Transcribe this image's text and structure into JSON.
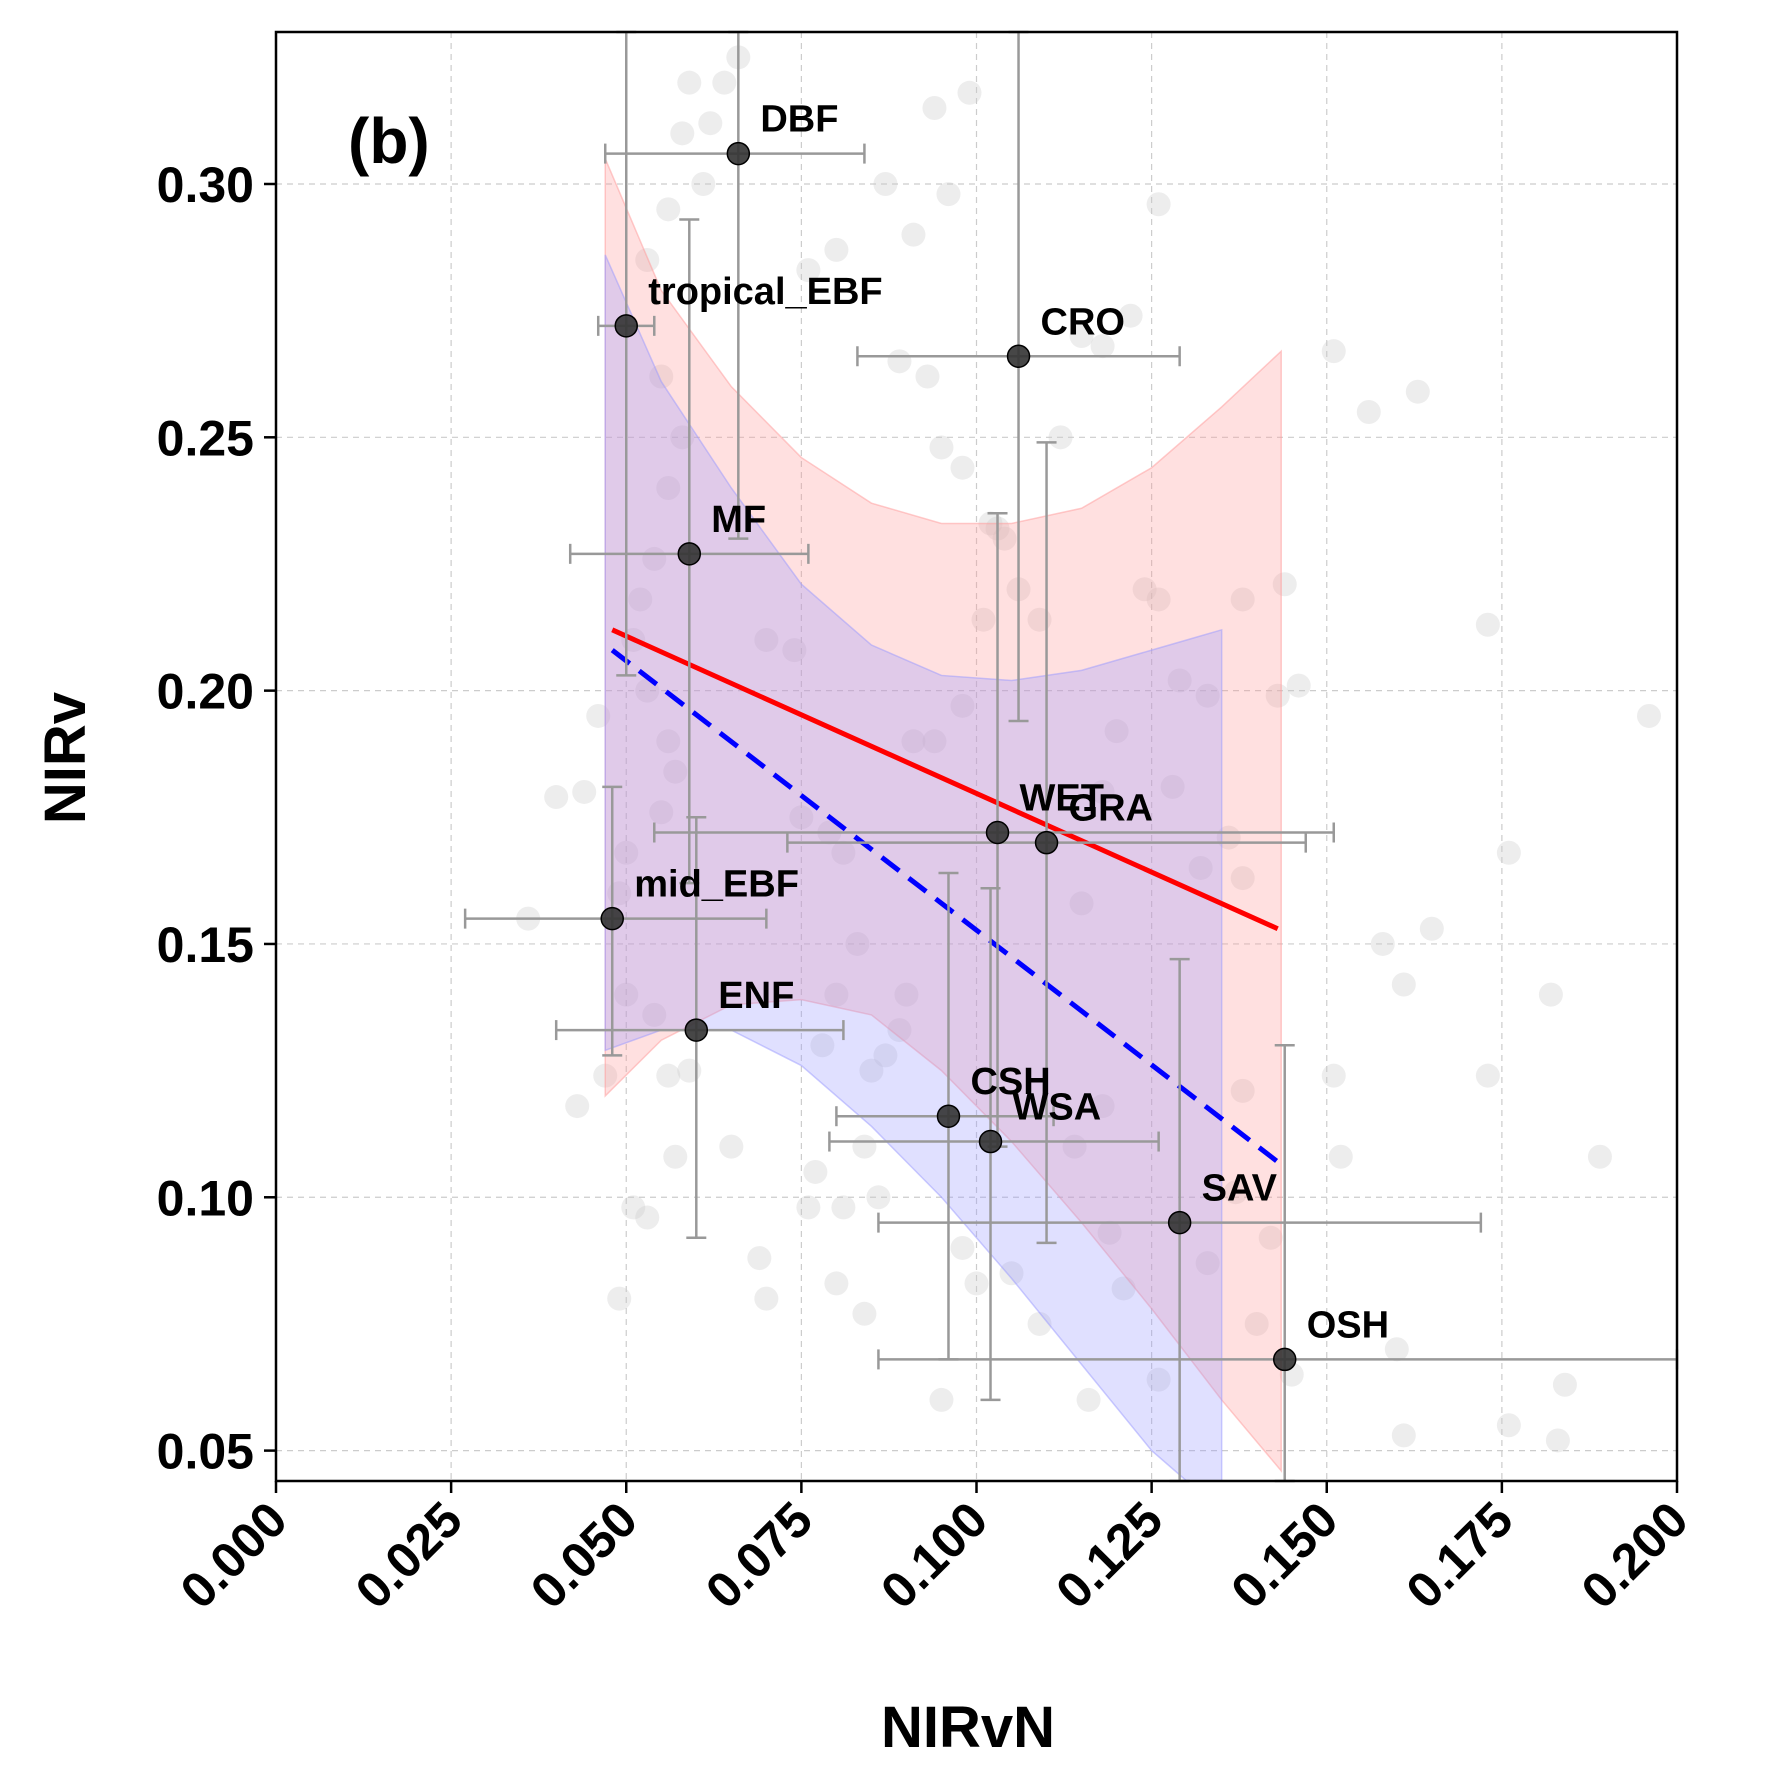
{
  "chart_data": {
    "type": "scatter",
    "panel_label": "(b)",
    "xlabel": "NIRvN",
    "ylabel": "NIRv",
    "xlim": [
      0.0,
      0.2
    ],
    "ylim": [
      0.044,
      0.33
    ],
    "xticks": [
      "0.000",
      "0.025",
      "0.050",
      "0.075",
      "0.100",
      "0.125",
      "0.150",
      "0.175",
      "0.200"
    ],
    "yticks": [
      "0.05",
      "0.10",
      "0.15",
      "0.20",
      "0.25",
      "0.30"
    ],
    "grid": true,
    "colors": {
      "points": "#333333",
      "errorbars": "#999999",
      "background_points": "#cccccc",
      "fit_red": "#ff0000",
      "fit_blue": "#0000ff",
      "band_red": "#ff9999",
      "band_blue": "#9999ff",
      "grid": "#cccccc"
    },
    "points": [
      {
        "label": "DBF",
        "x": 0.066,
        "y": 0.306,
        "xerr": [
          0.047,
          0.084
        ],
        "yerr": [
          0.23,
          0.33
        ]
      },
      {
        "label": "tropical_EBF",
        "x": 0.05,
        "y": 0.272,
        "xerr": [
          0.046,
          0.054
        ],
        "yerr": [
          0.203,
          0.33
        ]
      },
      {
        "label": "CRO",
        "x": 0.106,
        "y": 0.266,
        "xerr": [
          0.083,
          0.129
        ],
        "yerr": [
          0.194,
          0.33
        ]
      },
      {
        "label": "MF",
        "x": 0.059,
        "y": 0.227,
        "xerr": [
          0.042,
          0.076
        ],
        "yerr": [
          0.162,
          0.293
        ]
      },
      {
        "label": "WET",
        "x": 0.103,
        "y": 0.172,
        "xerr": [
          0.054,
          0.151
        ],
        "yerr": [
          0.11,
          0.235
        ]
      },
      {
        "label": "GRA",
        "x": 0.11,
        "y": 0.17,
        "xerr": [
          0.073,
          0.147
        ],
        "yerr": [
          0.091,
          0.249
        ]
      },
      {
        "label": "mid_EBF",
        "x": 0.048,
        "y": 0.155,
        "xerr": [
          0.027,
          0.07
        ],
        "yerr": [
          0.128,
          0.181
        ]
      },
      {
        "label": "ENF",
        "x": 0.06,
        "y": 0.133,
        "xerr": [
          0.04,
          0.081
        ],
        "yerr": [
          0.092,
          0.175
        ]
      },
      {
        "label": "CSH",
        "x": 0.096,
        "y": 0.116,
        "xerr": [
          0.08,
          0.111
        ],
        "yerr": [
          0.068,
          0.164
        ]
      },
      {
        "label": "WSA",
        "x": 0.102,
        "y": 0.111,
        "xerr": [
          0.079,
          0.126
        ],
        "yerr": [
          0.06,
          0.161
        ]
      },
      {
        "label": "SAV",
        "x": 0.129,
        "y": 0.095,
        "xerr": [
          0.086,
          0.172
        ],
        "yerr": [
          0.044,
          0.147
        ]
      },
      {
        "label": "OSH",
        "x": 0.144,
        "y": 0.068,
        "xerr": [
          0.086,
          0.2
        ],
        "yerr": [
          0.044,
          0.13
        ]
      }
    ],
    "fit_lines": [
      {
        "style": "solid",
        "color": "#ff0000",
        "x": [
          0.048,
          0.143
        ],
        "y": [
          0.212,
          0.153
        ]
      },
      {
        "style": "dashed",
        "color": "#0000ff",
        "x": [
          0.048,
          0.143
        ],
        "y": [
          0.208,
          0.107
        ]
      }
    ],
    "confidence_bands": [
      {
        "color": "#ff9999",
        "x": [
          0.047,
          0.055,
          0.065,
          0.075,
          0.085,
          0.095,
          0.105,
          0.115,
          0.125,
          0.135,
          0.1435
        ],
        "upper": [
          0.305,
          0.279,
          0.26,
          0.246,
          0.237,
          0.233,
          0.233,
          0.236,
          0.244,
          0.256,
          0.267
        ],
        "lower": [
          0.12,
          0.131,
          0.138,
          0.139,
          0.136,
          0.125,
          0.111,
          0.095,
          0.078,
          0.06,
          0.046
        ]
      },
      {
        "color": "#9999ff",
        "x": [
          0.047,
          0.055,
          0.065,
          0.075,
          0.085,
          0.095,
          0.105,
          0.115,
          0.125,
          0.13,
          0.135
        ],
        "upper": [
          0.286,
          0.261,
          0.24,
          0.221,
          0.209,
          0.203,
          0.202,
          0.204,
          0.208,
          0.21,
          0.212
        ],
        "lower": [
          0.129,
          0.133,
          0.133,
          0.126,
          0.114,
          0.1,
          0.084,
          0.067,
          0.05,
          0.044,
          0.044
        ]
      }
    ],
    "background_points": [
      [
        0.053,
        0.285
      ],
      [
        0.056,
        0.295
      ],
      [
        0.058,
        0.31
      ],
      [
        0.062,
        0.312
      ],
      [
        0.064,
        0.32
      ],
      [
        0.066,
        0.325
      ],
      [
        0.059,
        0.32
      ],
      [
        0.061,
        0.3
      ],
      [
        0.055,
        0.262
      ],
      [
        0.058,
        0.25
      ],
      [
        0.056,
        0.24
      ],
      [
        0.054,
        0.226
      ],
      [
        0.052,
        0.218
      ],
      [
        0.051,
        0.21
      ],
      [
        0.053,
        0.2
      ],
      [
        0.056,
        0.19
      ],
      [
        0.057,
        0.184
      ],
      [
        0.055,
        0.176
      ],
      [
        0.05,
        0.168
      ],
      [
        0.049,
        0.16
      ],
      [
        0.046,
        0.195
      ],
      [
        0.044,
        0.18
      ],
      [
        0.04,
        0.179
      ],
      [
        0.036,
        0.155
      ],
      [
        0.05,
        0.14
      ],
      [
        0.054,
        0.136
      ],
      [
        0.056,
        0.124
      ],
      [
        0.057,
        0.108
      ],
      [
        0.051,
        0.098
      ],
      [
        0.053,
        0.096
      ],
      [
        0.049,
        0.08
      ],
      [
        0.059,
        0.125
      ],
      [
        0.065,
        0.11
      ],
      [
        0.069,
        0.088
      ],
      [
        0.07,
        0.08
      ],
      [
        0.074,
        0.208
      ],
      [
        0.07,
        0.21
      ],
      [
        0.075,
        0.175
      ],
      [
        0.079,
        0.172
      ],
      [
        0.081,
        0.168
      ],
      [
        0.083,
        0.15
      ],
      [
        0.08,
        0.14
      ],
      [
        0.078,
        0.13
      ],
      [
        0.085,
        0.125
      ],
      [
        0.087,
        0.128
      ],
      [
        0.089,
        0.133
      ],
      [
        0.09,
        0.14
      ],
      [
        0.084,
        0.11
      ],
      [
        0.086,
        0.1
      ],
      [
        0.081,
        0.098
      ],
      [
        0.077,
        0.105
      ],
      [
        0.076,
        0.098
      ],
      [
        0.08,
        0.083
      ],
      [
        0.084,
        0.077
      ],
      [
        0.089,
        0.265
      ],
      [
        0.093,
        0.262
      ],
      [
        0.095,
        0.248
      ],
      [
        0.098,
        0.244
      ],
      [
        0.102,
        0.233
      ],
      [
        0.104,
        0.23
      ],
      [
        0.106,
        0.22
      ],
      [
        0.109,
        0.214
      ],
      [
        0.112,
        0.25
      ],
      [
        0.115,
        0.27
      ],
      [
        0.118,
        0.268
      ],
      [
        0.122,
        0.274
      ],
      [
        0.126,
        0.296
      ],
      [
        0.124,
        0.22
      ],
      [
        0.126,
        0.218
      ],
      [
        0.129,
        0.202
      ],
      [
        0.133,
        0.199
      ],
      [
        0.138,
        0.218
      ],
      [
        0.144,
        0.221
      ],
      [
        0.146,
        0.201
      ],
      [
        0.151,
        0.267
      ],
      [
        0.156,
        0.255
      ],
      [
        0.163,
        0.259
      ],
      [
        0.173,
        0.213
      ],
      [
        0.176,
        0.168
      ],
      [
        0.196,
        0.195
      ],
      [
        0.165,
        0.153
      ],
      [
        0.158,
        0.15
      ],
      [
        0.161,
        0.142
      ],
      [
        0.151,
        0.124
      ],
      [
        0.152,
        0.108
      ],
      [
        0.16,
        0.07
      ],
      [
        0.161,
        0.053
      ],
      [
        0.176,
        0.055
      ],
      [
        0.183,
        0.052
      ],
      [
        0.184,
        0.063
      ],
      [
        0.189,
        0.108
      ],
      [
        0.182,
        0.14
      ],
      [
        0.173,
        0.124
      ],
      [
        0.136,
        0.171
      ],
      [
        0.138,
        0.163
      ],
      [
        0.132,
        0.165
      ],
      [
        0.128,
        0.181
      ],
      [
        0.12,
        0.192
      ],
      [
        0.118,
        0.18
      ],
      [
        0.115,
        0.158
      ],
      [
        0.118,
        0.118
      ],
      [
        0.114,
        0.11
      ],
      [
        0.119,
        0.093
      ],
      [
        0.121,
        0.082
      ],
      [
        0.126,
        0.064
      ],
      [
        0.116,
        0.06
      ],
      [
        0.109,
        0.075
      ],
      [
        0.105,
        0.085
      ],
      [
        0.1,
        0.083
      ],
      [
        0.098,
        0.09
      ],
      [
        0.095,
        0.06
      ],
      [
        0.096,
        0.298
      ],
      [
        0.094,
        0.315
      ],
      [
        0.099,
        0.318
      ],
      [
        0.087,
        0.3
      ],
      [
        0.091,
        0.29
      ],
      [
        0.08,
        0.287
      ],
      [
        0.076,
        0.283
      ],
      [
        0.094,
        0.19
      ],
      [
        0.091,
        0.19
      ],
      [
        0.098,
        0.197
      ],
      [
        0.101,
        0.214
      ],
      [
        0.103,
        0.232
      ],
      [
        0.143,
        0.199
      ],
      [
        0.142,
        0.092
      ],
      [
        0.14,
        0.075
      ],
      [
        0.145,
        0.065
      ],
      [
        0.137,
        0.101
      ],
      [
        0.133,
        0.087
      ],
      [
        0.138,
        0.121
      ],
      [
        0.043,
        0.118
      ],
      [
        0.047,
        0.124
      ]
    ]
  }
}
